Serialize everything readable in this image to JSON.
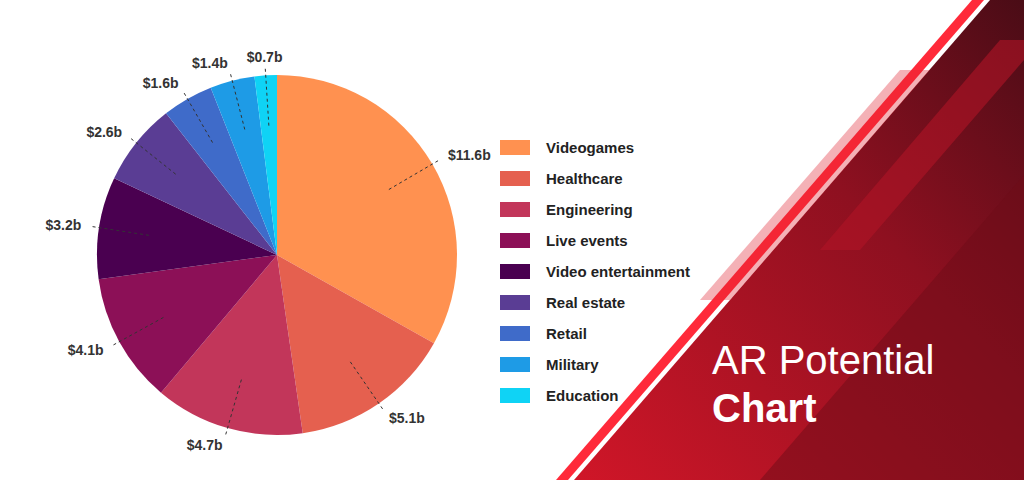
{
  "chart_data": {
    "type": "pie",
    "title": "AR Potential",
    "subtitle": "Chart",
    "categories": [
      "Videogames",
      "Healthcare",
      "Engineering",
      "Live events",
      "Video entertainment",
      "Real estate",
      "Retail",
      "Military",
      "Education"
    ],
    "values": [
      11.6,
      5.1,
      4.7,
      4.1,
      3.2,
      2.6,
      1.6,
      1.4,
      0.7
    ],
    "value_labels": [
      "$11.6b",
      "$5.1b",
      "$4.7b",
      "$4.1b",
      "$3.2b",
      "$2.6b",
      "$1.6b",
      "$1.4b",
      "$0.7b"
    ],
    "colors": [
      "#ff9150",
      "#e5604f",
      "#c2365a",
      "#8c1057",
      "#4a0050",
      "#5a3d94",
      "#3f6bc9",
      "#1e9be6",
      "#0fd3f5"
    ],
    "legend": "right",
    "data_labels": true
  }
}
